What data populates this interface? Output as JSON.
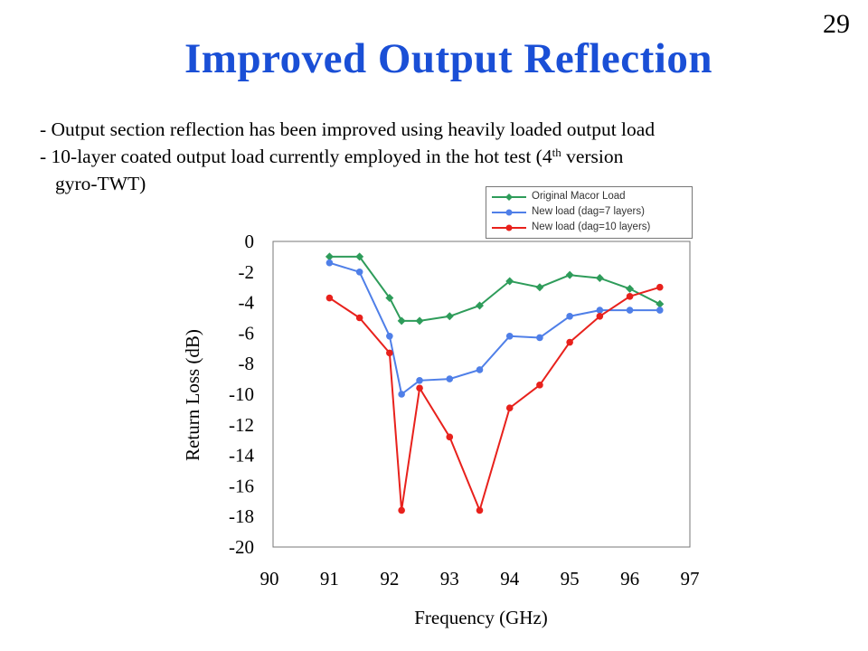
{
  "slide": {
    "number": "29",
    "title": "Improved Output Reflection",
    "bullets": {
      "line1": "- Output section reflection has been improved using heavily loaded output load",
      "line2_pre": "- 10-layer coated output load currently employed in the hot test (4",
      "line2_sup": "th",
      "line2_post": " version",
      "line3": "gyro-TWT)"
    }
  },
  "chart_data": {
    "type": "line",
    "xlabel": "Frequency (GHz)",
    "ylabel": "Return Loss (dB)",
    "xlim": [
      90,
      97
    ],
    "ylim": [
      -20,
      0
    ],
    "x_ticks": [
      "90",
      "91",
      "92",
      "93",
      "94",
      "95",
      "96",
      "97"
    ],
    "y_ticks": [
      "0",
      "-2",
      "-4",
      "-6",
      "-8",
      "-10",
      "-12",
      "-14",
      "-16",
      "-18",
      "-20"
    ],
    "grid": false,
    "legend_position": "top-right",
    "series": [
      {
        "name": "Original Macor Load",
        "color": "#2e9c5a",
        "marker": "diamond",
        "x": [
          91.0,
          91.5,
          92.0,
          92.2,
          92.5,
          93.0,
          93.5,
          94.0,
          94.5,
          95.0,
          95.5,
          96.0,
          96.5
        ],
        "y": [
          -1.0,
          -1.0,
          -3.7,
          -5.2,
          -5.2,
          -4.9,
          -4.2,
          -2.6,
          -3.0,
          -2.2,
          -2.4,
          -3.1,
          -4.1
        ]
      },
      {
        "name": "New load (dag=7 layers)",
        "color": "#4f7fe8",
        "marker": "circle",
        "x": [
          91.0,
          91.5,
          92.0,
          92.2,
          92.5,
          93.0,
          93.5,
          94.0,
          94.5,
          95.0,
          95.5,
          96.0,
          96.5
        ],
        "y": [
          -1.4,
          -2.0,
          -6.2,
          -10.0,
          -9.1,
          -9.0,
          -8.4,
          -6.2,
          -6.3,
          -4.9,
          -4.5,
          -4.5,
          -4.5
        ]
      },
      {
        "name": "New load (dag=10 layers)",
        "color": "#e8211c",
        "marker": "circle",
        "x": [
          91.0,
          91.5,
          92.0,
          92.2,
          92.5,
          93.0,
          93.5,
          94.0,
          94.5,
          95.0,
          95.5,
          96.0,
          96.5
        ],
        "y": [
          -3.7,
          -5.0,
          -7.3,
          -17.6,
          -9.6,
          -12.8,
          -17.6,
          -10.9,
          -9.4,
          -6.6,
          -4.9,
          -3.6,
          -3.0
        ]
      }
    ]
  }
}
